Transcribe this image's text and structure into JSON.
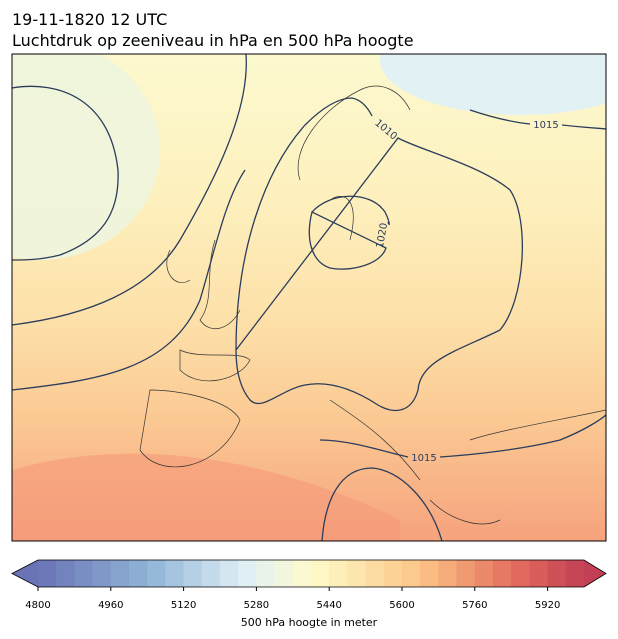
{
  "header": {
    "title": "19-11-1820 12 UTC",
    "subtitle": "Luchtdruk op zeeniveau in hPa en 500 hPa hoogte"
  },
  "isobar_labels": [
    1015,
    1010,
    1020,
    1015
  ],
  "colorbar": {
    "label": "500 hPa hoogte in meter",
    "range": [
      4800,
      6000
    ],
    "ticks": [
      4800,
      4960,
      5120,
      5280,
      5440,
      5600,
      5760,
      5920
    ]
  }
}
